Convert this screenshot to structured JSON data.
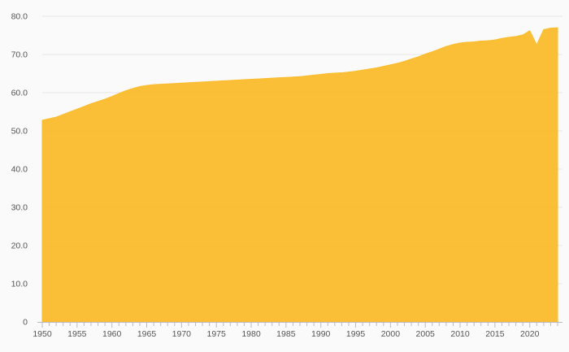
{
  "chart_data": {
    "type": "area",
    "title": "",
    "xlabel": "",
    "ylabel": "",
    "xlim": [
      1950,
      2024
    ],
    "ylim": [
      0,
      80
    ],
    "y_ticks": [
      0,
      10,
      20,
      30,
      40,
      50,
      60,
      70,
      80
    ],
    "y_tick_labels": [
      "0",
      "10.0",
      "20.0",
      "30.0",
      "40.0",
      "50.0",
      "60.0",
      "70.0",
      "80.0"
    ],
    "x_ticks": [
      1950,
      1955,
      1960,
      1965,
      1970,
      1975,
      1980,
      1985,
      1990,
      1995,
      2000,
      2005,
      2010,
      2015,
      2020
    ],
    "x_tick_labels": [
      "1950",
      "1955",
      "1960",
      "1965",
      "1970",
      "1975",
      "1980",
      "1985",
      "1990",
      "1995",
      "2000",
      "2005",
      "2010",
      "2015",
      "2020"
    ],
    "grid": true,
    "legend": "none",
    "fill_color": "#fbbc2c",
    "series": [
      {
        "x": [
          1950,
          1951,
          1952,
          1953,
          1954,
          1955,
          1956,
          1957,
          1958,
          1959,
          1960,
          1961,
          1962,
          1963,
          1964,
          1965,
          1966,
          1967,
          1968,
          1969,
          1970,
          1971,
          1972,
          1973,
          1974,
          1975,
          1976,
          1977,
          1978,
          1979,
          1980,
          1981,
          1982,
          1983,
          1984,
          1985,
          1986,
          1987,
          1988,
          1989,
          1990,
          1991,
          1992,
          1993,
          1994,
          1995,
          1996,
          1997,
          1998,
          1999,
          2000,
          2001,
          2002,
          2003,
          2004,
          2005,
          2006,
          2007,
          2008,
          2009,
          2010,
          2011,
          2012,
          2013,
          2014,
          2015,
          2016,
          2017,
          2018,
          2019,
          2020,
          2021,
          2022,
          2023,
          2024
        ],
        "values": [
          52.8,
          53.2,
          53.6,
          54.3,
          55.0,
          55.7,
          56.4,
          57.1,
          57.7,
          58.3,
          59.0,
          59.8,
          60.5,
          61.1,
          61.6,
          61.9,
          62.1,
          62.2,
          62.3,
          62.4,
          62.5,
          62.6,
          62.7,
          62.8,
          62.9,
          63.0,
          63.1,
          63.2,
          63.3,
          63.4,
          63.5,
          63.6,
          63.7,
          63.8,
          63.9,
          64.0,
          64.1,
          64.2,
          64.4,
          64.6,
          64.8,
          65.0,
          65.1,
          65.2,
          65.4,
          65.6,
          65.9,
          66.2,
          66.5,
          66.9,
          67.3,
          67.7,
          68.2,
          68.8,
          69.4,
          70.1,
          70.7,
          71.4,
          72.1,
          72.6,
          73.0,
          73.2,
          73.3,
          73.5,
          73.6,
          73.8,
          74.2,
          74.5,
          74.7,
          75.1,
          76.2,
          72.5,
          76.5,
          76.9,
          77.0
        ]
      }
    ]
  }
}
